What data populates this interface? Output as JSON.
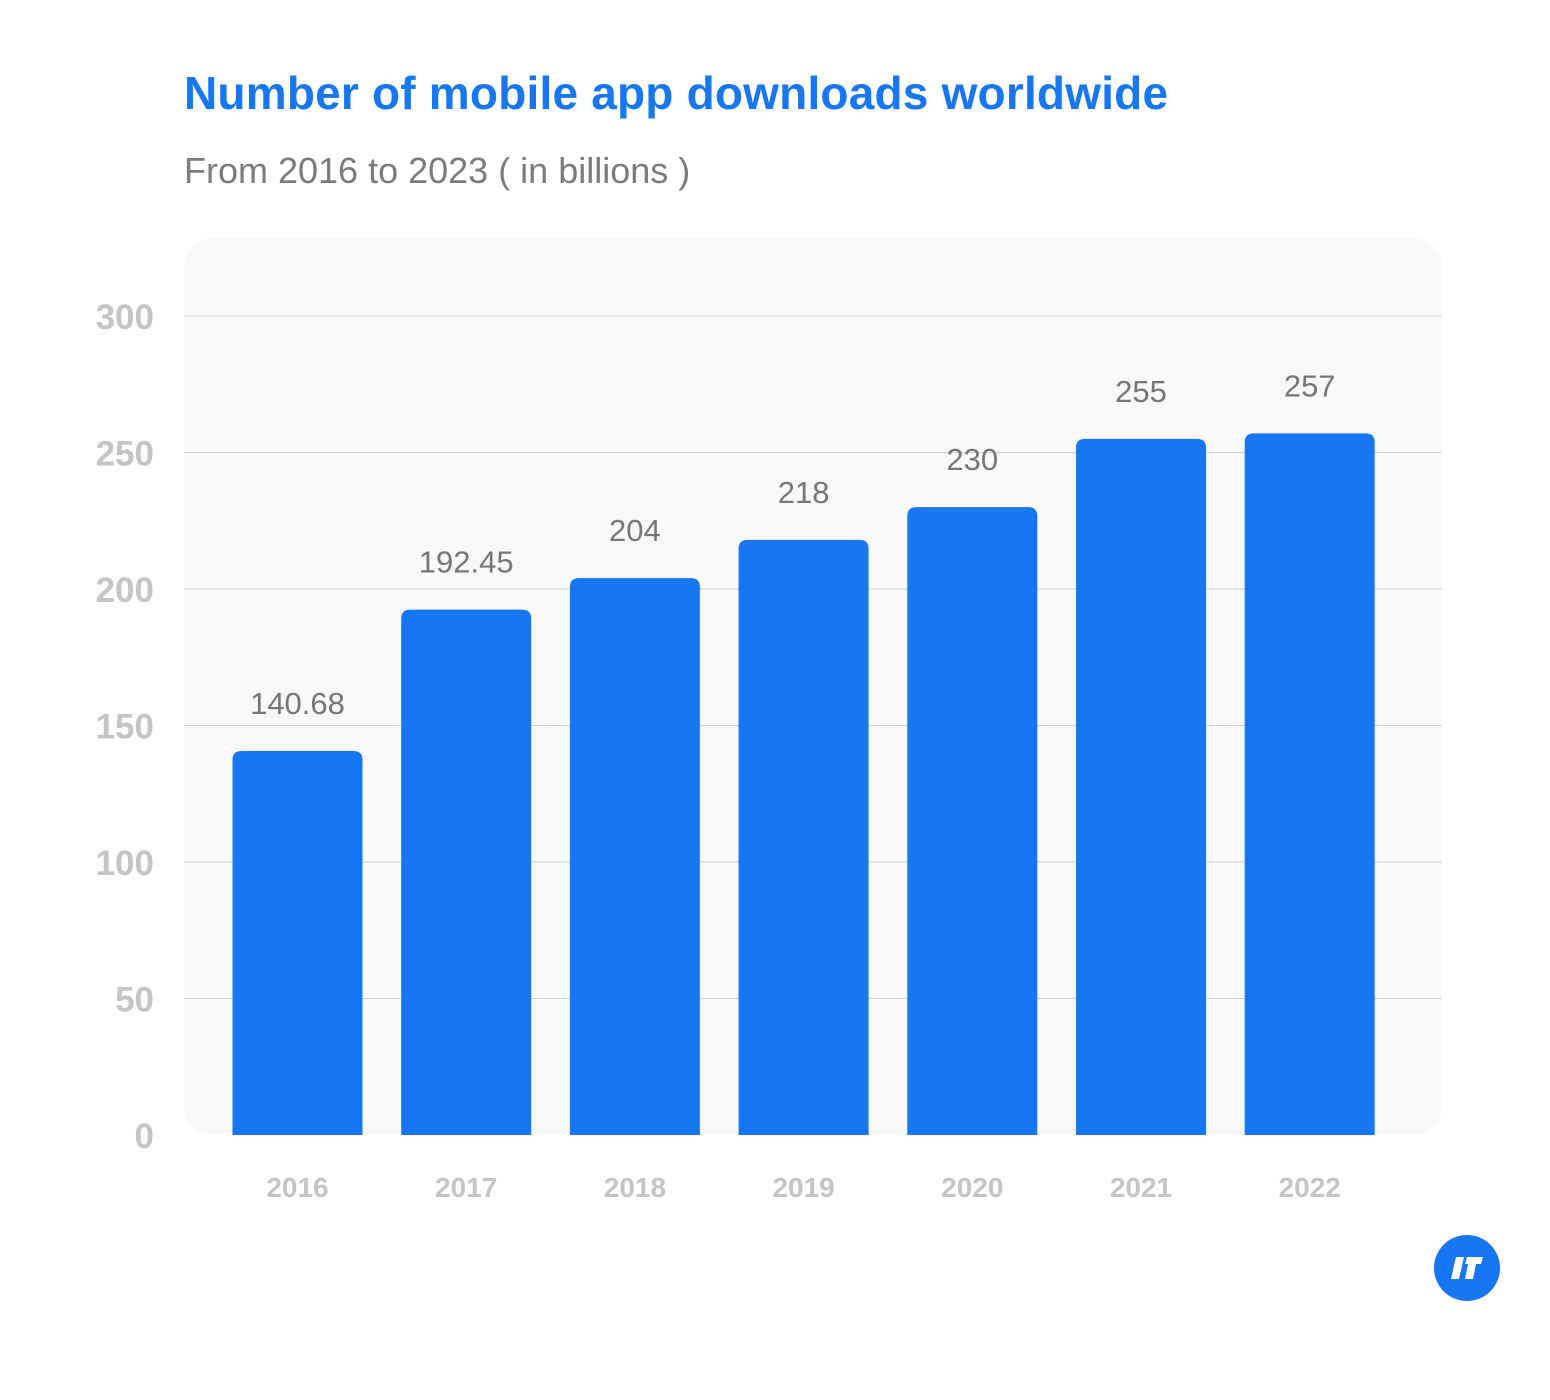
{
  "header": {
    "title": "Number of mobile app downloads worldwide",
    "subtitle": "From 2016 to 2023 ( in billions )"
  },
  "colors": {
    "bar": "#1776f1",
    "title": "#1776f1",
    "plot_background": "#f8f8f8",
    "gridline": "#d0d0d0",
    "axis_text": "#c4c4c4",
    "value_label": "#767676"
  },
  "logo": {
    "icon": "brand-logo-icon"
  },
  "chart_data": {
    "type": "bar",
    "categories": [
      "2016",
      "2017",
      "2018",
      "2019",
      "2020",
      "2021",
      "2022"
    ],
    "series": [
      {
        "values": [
          140.68,
          192.45,
          204,
          218,
          230,
          255,
          257
        ]
      }
    ],
    "value_labels": [
      "140.68",
      "192.45",
      "204",
      "218",
      "230",
      "255",
      "257"
    ],
    "yticks": [
      0,
      50,
      100,
      150,
      200,
      250,
      300
    ],
    "ylim": [
      0,
      300
    ],
    "grid": true,
    "legend": "none"
  }
}
